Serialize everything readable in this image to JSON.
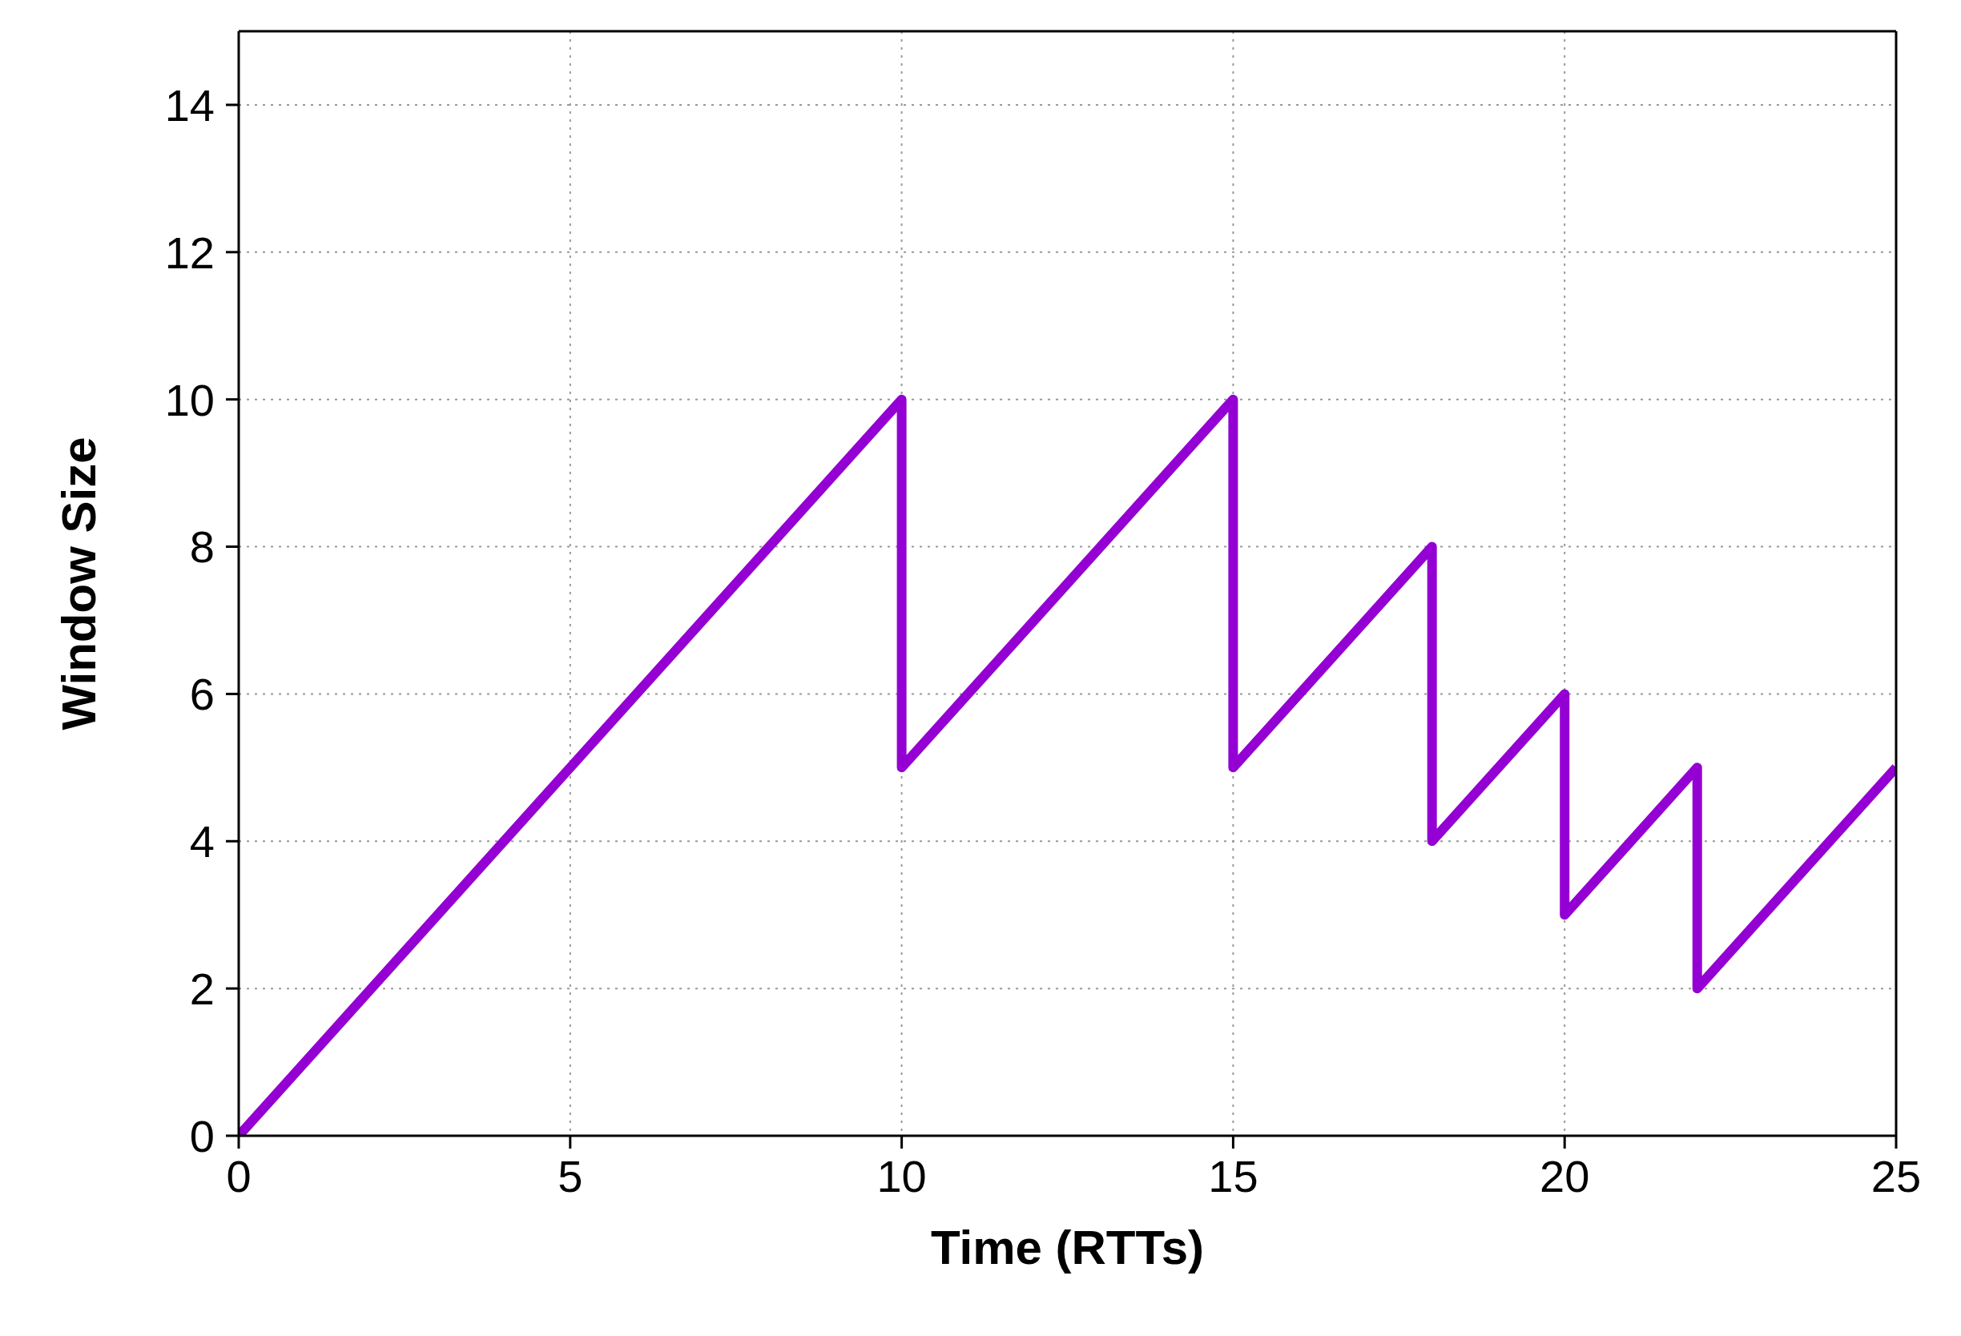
{
  "chart_data": {
    "type": "line",
    "xlabel": "Time (RTTs)",
    "ylabel": "Window Size",
    "x": [
      0,
      10,
      10,
      15,
      15,
      18,
      18,
      20,
      20,
      22,
      22,
      25
    ],
    "series": [
      {
        "color": "#9400d3",
        "values": [
          0,
          10,
          5,
          10,
          5,
          8,
          4,
          6,
          3,
          5,
          2,
          5
        ]
      }
    ],
    "xlim": [
      0,
      25
    ],
    "xticks": [
      0,
      5,
      10,
      15,
      20,
      25
    ],
    "ylim": [
      0,
      15
    ],
    "yticks": [
      0,
      2,
      4,
      6,
      8,
      10,
      12,
      14
    ],
    "grid": true,
    "legend": false,
    "marker": "none",
    "line_style": "solid"
  }
}
